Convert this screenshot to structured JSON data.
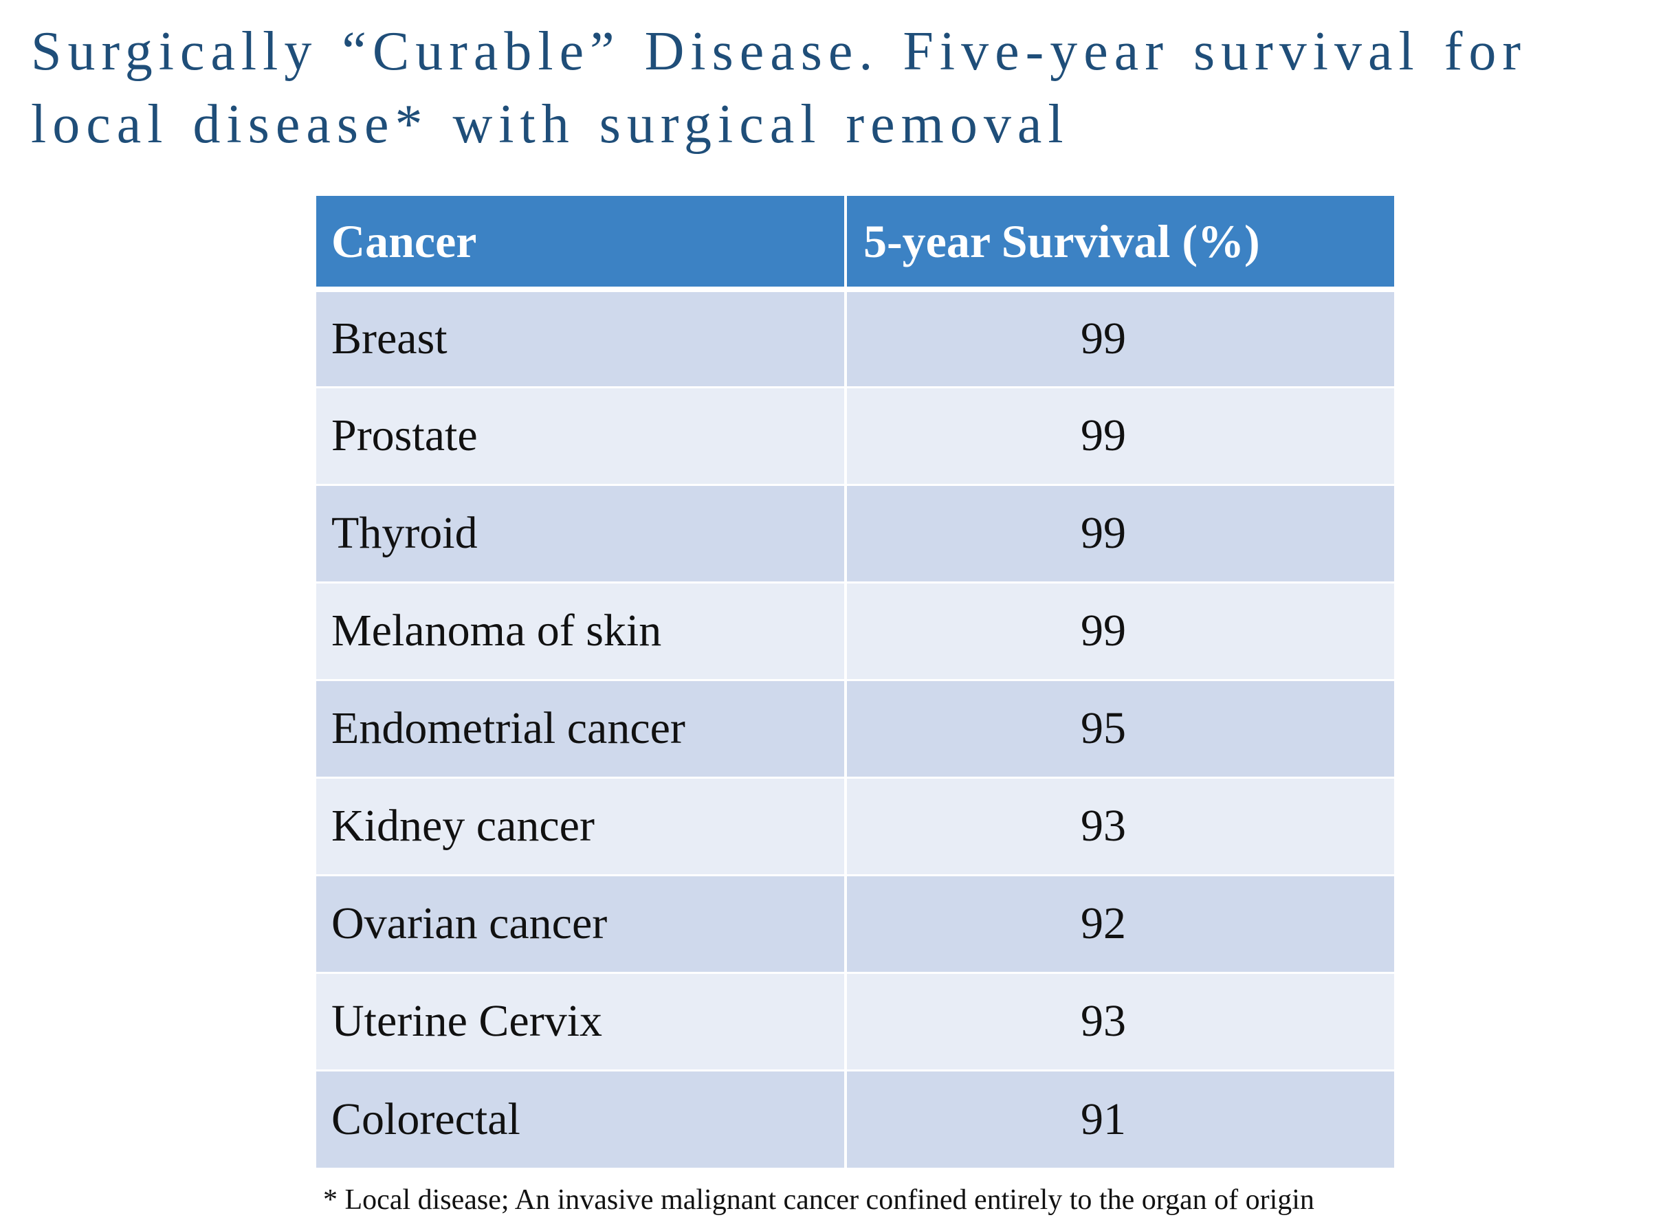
{
  "title": {
    "line1": "Surgically “Curable” Disease. Five-year survival for",
    "line2": "local disease* with surgical removal"
  },
  "table": {
    "headers": [
      "Cancer",
      "5-year Survival (%)"
    ],
    "rows": [
      [
        "Breast",
        "99"
      ],
      [
        "Prostate",
        "99"
      ],
      [
        "Thyroid",
        "99"
      ],
      [
        "Melanoma of skin",
        "99"
      ],
      [
        "Endometrial cancer",
        "95"
      ],
      [
        "Kidney cancer",
        "93"
      ],
      [
        "Ovarian cancer",
        "92"
      ],
      [
        "Uterine Cervix",
        "93"
      ],
      [
        "Colorectal",
        "91"
      ]
    ]
  },
  "footnote": "* Local disease; An invasive malignant cancer confined entirely to the organ of origin",
  "colors": {
    "title": "#1f4e79",
    "header_bg": "#3c82c4",
    "row_dark": "#cfd9ec",
    "row_light": "#e8edf6"
  }
}
